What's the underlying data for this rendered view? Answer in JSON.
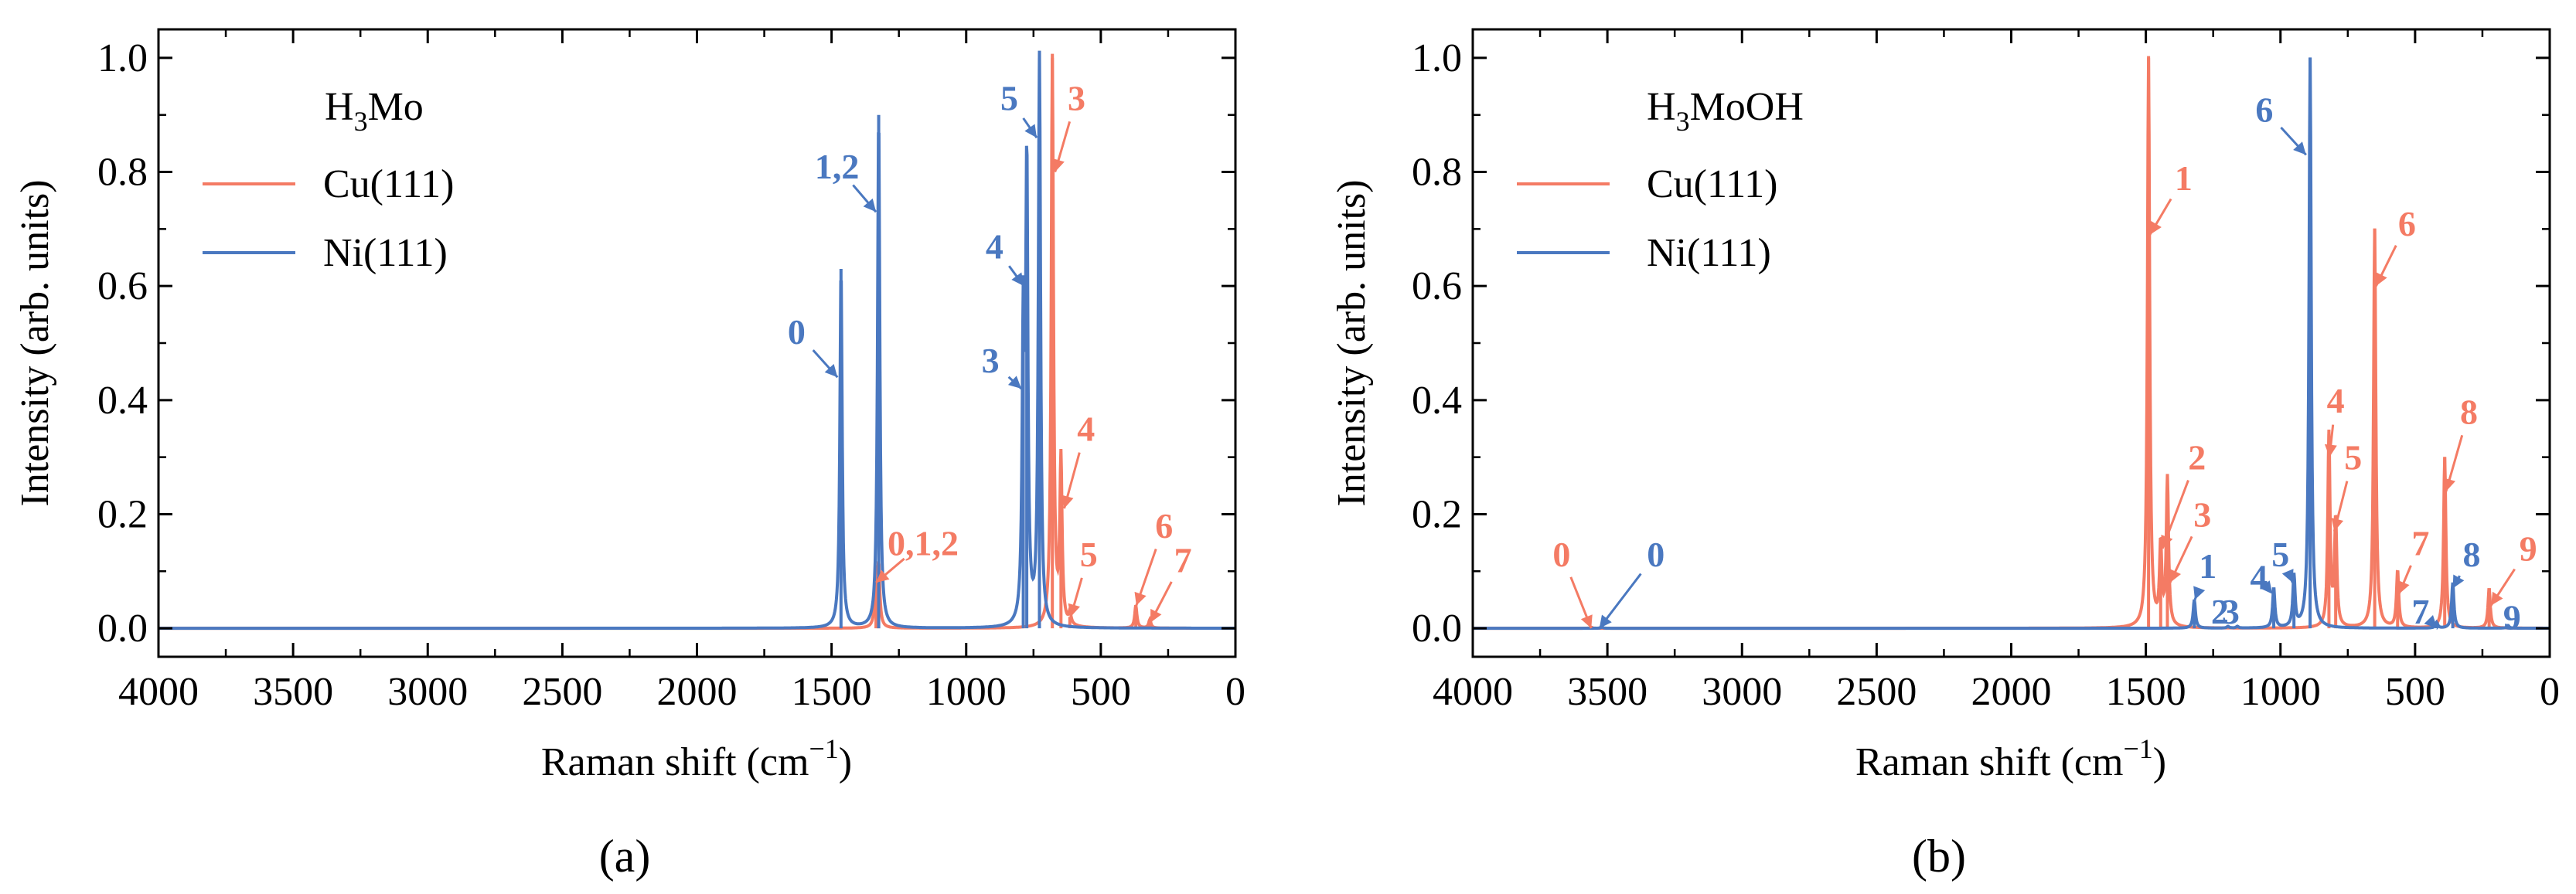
{
  "figure": {
    "colors": {
      "cu": "#f47b64",
      "ni": "#4a78c0",
      "axis": "#000000"
    }
  },
  "chart_data": [
    {
      "type": "line",
      "panel_label": "(a)",
      "title_main": "H",
      "title_sub": "3",
      "title_rest": "Mo",
      "xlabel": "Raman shift (cm",
      "xlabel_sup": "−1",
      "xlabel_close": ")",
      "ylabel": "Intensity (arb. units)",
      "xlim": [
        4000,
        0
      ],
      "ylim": [
        -0.05,
        1.05
      ],
      "xticks": [
        4000,
        3500,
        3000,
        2500,
        2000,
        1500,
        1000,
        500,
        0
      ],
      "xtick_labels": [
        "4000",
        "3500",
        "3000",
        "2500",
        "2000",
        "1500",
        "1000",
        "500",
        "0"
      ],
      "yticks": [
        0.0,
        0.2,
        0.4,
        0.6,
        0.8,
        1.0
      ],
      "ytick_labels": [
        "0.0",
        "0.2",
        "0.4",
        "0.6",
        "0.8",
        "1.0"
      ],
      "legend_position": "top-left",
      "series": [
        {
          "name": "Cu(111)",
          "color": "#f47b64",
          "peaks": [
            {
              "x": 1335,
              "y": 0.09
            },
            {
              "x": 1325,
              "y": 0.1
            },
            {
              "x": 680,
              "y": 1.0
            },
            {
              "x": 648,
              "y": 0.29
            },
            {
              "x": 615,
              "y": 0.02
            },
            {
              "x": 370,
              "y": 0.04
            },
            {
              "x": 318,
              "y": 0.015
            }
          ]
        },
        {
          "name": "Ni(111)",
          "color": "#4a78c0",
          "peaks": [
            {
              "x": 1465,
              "y": 0.63
            },
            {
              "x": 1325,
              "y": 0.9
            },
            {
              "x": 788,
              "y": 0.51
            },
            {
              "x": 775,
              "y": 0.79
            },
            {
              "x": 728,
              "y": 1.0
            }
          ]
        }
      ],
      "annotations": [
        {
          "text": "0",
          "color": "#4a78c0",
          "tx": 1630,
          "ty": 0.52,
          "ax": 1478,
          "ay": 0.44
        },
        {
          "text": "1,2",
          "color": "#4a78c0",
          "tx": 1480,
          "ty": 0.81,
          "ax": 1335,
          "ay": 0.73
        },
        {
          "text": "5",
          "color": "#4a78c0",
          "tx": 840,
          "ty": 0.93,
          "ax": 738,
          "ay": 0.86
        },
        {
          "text": "4",
          "color": "#4a78c0",
          "tx": 895,
          "ty": 0.67,
          "ax": 786,
          "ay": 0.6
        },
        {
          "text": "3",
          "color": "#4a78c0",
          "tx": 910,
          "ty": 0.47,
          "ax": 795,
          "ay": 0.42
        },
        {
          "text": "3",
          "color": "#f47b64",
          "tx": 590,
          "ty": 0.93,
          "ax": 670,
          "ay": 0.8
        },
        {
          "text": "4",
          "color": "#f47b64",
          "tx": 555,
          "ty": 0.35,
          "ax": 636,
          "ay": 0.21
        },
        {
          "text": "0,1,2",
          "color": "#f47b64",
          "tx": 1160,
          "ty": 0.15,
          "ax": 1335,
          "ay": 0.08
        },
        {
          "text": "5",
          "color": "#f47b64",
          "tx": 545,
          "ty": 0.13,
          "ax": 612,
          "ay": 0.02
        },
        {
          "text": "6",
          "color": "#f47b64",
          "tx": 265,
          "ty": 0.18,
          "ax": 368,
          "ay": 0.04
        },
        {
          "text": "7",
          "color": "#f47b64",
          "tx": 195,
          "ty": 0.12,
          "ax": 316,
          "ay": 0.01
        }
      ]
    },
    {
      "type": "line",
      "panel_label": "(b)",
      "title_main": "H",
      "title_sub": "3",
      "title_rest": "MoOH",
      "xlabel": "Raman shift (cm",
      "xlabel_sup": "−1",
      "xlabel_close": ")",
      "ylabel": "Intensity (arb. units)",
      "xlim": [
        4000,
        0
      ],
      "ylim": [
        -0.05,
        1.05
      ],
      "xticks": [
        4000,
        3500,
        3000,
        2500,
        2000,
        1500,
        1000,
        500,
        0
      ],
      "xtick_labels": [
        "4000",
        "3500",
        "3000",
        "2500",
        "2000",
        "1500",
        "1000",
        "500",
        "0"
      ],
      "yticks": [
        0.0,
        0.2,
        0.4,
        0.6,
        0.8,
        1.0
      ],
      "ytick_labels": [
        "0.0",
        "0.2",
        "0.4",
        "0.6",
        "0.8",
        "1.0"
      ],
      "legend_position": "top-left",
      "series": [
        {
          "name": "Cu(111)",
          "color": "#f47b64",
          "peaks": [
            {
              "x": 3560,
              "y": 0.002
            },
            {
              "x": 1490,
              "y": 1.0
            },
            {
              "x": 1445,
              "y": 0.14
            },
            {
              "x": 1420,
              "y": 0.26
            },
            {
              "x": 820,
              "y": 0.34
            },
            {
              "x": 795,
              "y": 0.19
            },
            {
              "x": 650,
              "y": 0.7
            },
            {
              "x": 565,
              "y": 0.1
            },
            {
              "x": 390,
              "y": 0.3
            },
            {
              "x": 225,
              "y": 0.07
            }
          ]
        },
        {
          "name": "Ni(111)",
          "color": "#4a78c0",
          "peaks": [
            {
              "x": 3520,
              "y": 0.002
            },
            {
              "x": 1320,
              "y": 0.05
            },
            {
              "x": 1195,
              "y": 0.003
            },
            {
              "x": 1160,
              "y": 0.003
            },
            {
              "x": 1025,
              "y": 0.07
            },
            {
              "x": 950,
              "y": 0.09
            },
            {
              "x": 890,
              "y": 1.0
            },
            {
              "x": 420,
              "y": 0.01
            },
            {
              "x": 360,
              "y": 0.08
            },
            {
              "x": 155,
              "y": 0.005
            }
          ]
        }
      ],
      "annotations": [
        {
          "text": "0",
          "color": "#f47b64",
          "tx": 3670,
          "ty": 0.13,
          "ax": 3560,
          "ay": 0.0
        },
        {
          "text": "0",
          "color": "#4a78c0",
          "tx": 3320,
          "ty": 0.13,
          "ax": 3530,
          "ay": 0.0
        },
        {
          "text": "1",
          "color": "#f47b64",
          "tx": 1360,
          "ty": 0.79,
          "ax": 1485,
          "ay": 0.69
        },
        {
          "text": "6",
          "color": "#4a78c0",
          "tx": 1060,
          "ty": 0.91,
          "ax": 905,
          "ay": 0.83
        },
        {
          "text": "6",
          "color": "#f47b64",
          "tx": 530,
          "ty": 0.71,
          "ax": 645,
          "ay": 0.6
        },
        {
          "text": "2",
          "color": "#f47b64",
          "tx": 1310,
          "ty": 0.3,
          "ax": 1438,
          "ay": 0.14
        },
        {
          "text": "3",
          "color": "#f47b64",
          "tx": 1290,
          "ty": 0.2,
          "ax": 1410,
          "ay": 0.08
        },
        {
          "text": "1",
          "color": "#4a78c0",
          "tx": 1270,
          "ty": 0.11,
          "ax": 1318,
          "ay": 0.05
        },
        {
          "text": "2",
          "color": "#4a78c0",
          "tx": 1225,
          "ty": 0.03,
          "ax": null,
          "ay": null
        },
        {
          "text": "3",
          "color": "#4a78c0",
          "tx": 1185,
          "ty": 0.03,
          "ax": null,
          "ay": null
        },
        {
          "text": "4",
          "color": "#4a78c0",
          "tx": 1080,
          "ty": 0.09,
          "ax": 1030,
          "ay": 0.06
        },
        {
          "text": "5",
          "color": "#4a78c0",
          "tx": 1000,
          "ty": 0.13,
          "ax": 955,
          "ay": 0.08
        },
        {
          "text": "4",
          "color": "#f47b64",
          "tx": 795,
          "ty": 0.4,
          "ax": 818,
          "ay": 0.3
        },
        {
          "text": "5",
          "color": "#f47b64",
          "tx": 730,
          "ty": 0.3,
          "ax": 800,
          "ay": 0.17
        },
        {
          "text": "7",
          "color": "#f47b64",
          "tx": 480,
          "ty": 0.15,
          "ax": 560,
          "ay": 0.06
        },
        {
          "text": "7",
          "color": "#4a78c0",
          "tx": 480,
          "ty": 0.03,
          "ax": 418,
          "ay": 0.0
        },
        {
          "text": "8",
          "color": "#f47b64",
          "tx": 300,
          "ty": 0.38,
          "ax": 385,
          "ay": 0.24
        },
        {
          "text": "8",
          "color": "#4a78c0",
          "tx": 290,
          "ty": 0.13,
          "ax": 360,
          "ay": 0.07
        },
        {
          "text": "9",
          "color": "#f47b64",
          "tx": 80,
          "ty": 0.14,
          "ax": 218,
          "ay": 0.04
        },
        {
          "text": "9",
          "color": "#4a78c0",
          "tx": 140,
          "ty": 0.02,
          "ax": null,
          "ay": null
        }
      ]
    }
  ]
}
